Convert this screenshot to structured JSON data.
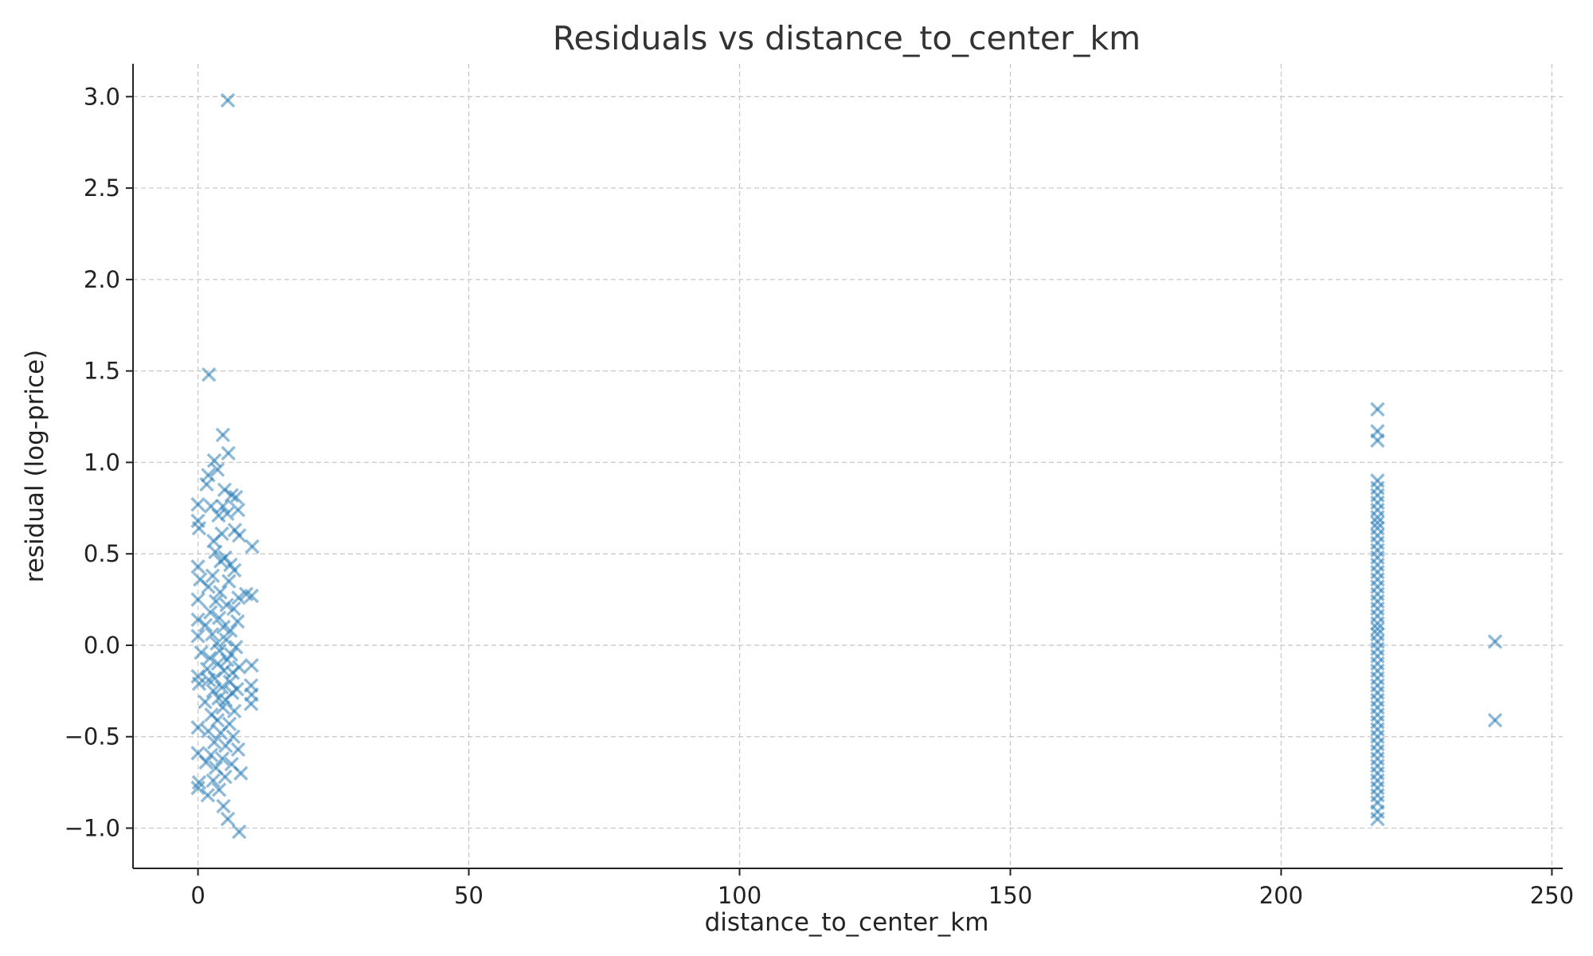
{
  "chart_data": {
    "type": "scatter",
    "title": "Residuals vs distance_to_center_km",
    "xlabel": "distance_to_center_km",
    "ylabel": "residual (log-price)",
    "xlim": [
      -12,
      252
    ],
    "ylim": [
      -1.22,
      3.18
    ],
    "xticks": [
      0,
      50,
      100,
      150,
      200,
      250
    ],
    "xtick_labels": [
      "0",
      "50",
      "100",
      "150",
      "200",
      "250"
    ],
    "yticks": [
      -1.0,
      -0.5,
      0.0,
      0.5,
      1.0,
      1.5,
      2.0,
      2.5,
      3.0
    ],
    "ytick_labels": [
      "−1.0",
      "−0.5",
      "0.0",
      "0.5",
      "1.0",
      "1.5",
      "2.0",
      "2.5",
      "3.0"
    ],
    "grid": true,
    "marker": "x",
    "color": "#1f77b4",
    "series": [
      {
        "points": [
          [
            5.5,
            2.98
          ],
          [
            2.0,
            1.48
          ],
          [
            4.6,
            1.15
          ],
          [
            5.6,
            1.05
          ],
          [
            3.0,
            1.01
          ],
          [
            3.6,
            0.96
          ],
          [
            1.9,
            0.93
          ],
          [
            1.6,
            0.88
          ],
          [
            4.9,
            0.85
          ],
          [
            6.2,
            0.82
          ],
          [
            7.0,
            0.81
          ],
          [
            0.0,
            0.77
          ],
          [
            2.4,
            0.76
          ],
          [
            4.6,
            0.76
          ],
          [
            7.4,
            0.74
          ],
          [
            3.8,
            0.71
          ],
          [
            5.4,
            0.72
          ],
          [
            0.0,
            0.68
          ],
          [
            0.2,
            0.64
          ],
          [
            6.8,
            0.63
          ],
          [
            4.4,
            0.61
          ],
          [
            2.9,
            0.57
          ],
          [
            7.6,
            0.6
          ],
          [
            10.0,
            0.54
          ],
          [
            3.2,
            0.51
          ],
          [
            5.0,
            0.48
          ],
          [
            6.0,
            0.44
          ],
          [
            4.2,
            0.46
          ],
          [
            0.0,
            0.43
          ],
          [
            6.7,
            0.41
          ],
          [
            2.7,
            0.38
          ],
          [
            0.4,
            0.36
          ],
          [
            5.7,
            0.35
          ],
          [
            1.9,
            0.32
          ],
          [
            4.1,
            0.29
          ],
          [
            8.9,
            0.28
          ],
          [
            9.9,
            0.27
          ],
          [
            7.5,
            0.26
          ],
          [
            3.3,
            0.24
          ],
          [
            0.0,
            0.25
          ],
          [
            5.3,
            0.22
          ],
          [
            6.6,
            0.2
          ],
          [
            2.3,
            0.18
          ],
          [
            3.9,
            0.15
          ],
          [
            0.0,
            0.14
          ],
          [
            7.3,
            0.13
          ],
          [
            1.4,
            0.11
          ],
          [
            4.7,
            0.1
          ],
          [
            6.0,
            0.08
          ],
          [
            2.6,
            0.06
          ],
          [
            0.0,
            0.05
          ],
          [
            5.2,
            0.03
          ],
          [
            3.5,
            0.01
          ],
          [
            7.0,
            -0.01
          ],
          [
            4.0,
            -0.03
          ],
          [
            0.6,
            -0.04
          ],
          [
            6.1,
            -0.05
          ],
          [
            2.2,
            -0.07
          ],
          [
            5.4,
            -0.08
          ],
          [
            3.7,
            -0.1
          ],
          [
            9.9,
            -0.11
          ],
          [
            7.6,
            -0.12
          ],
          [
            1.7,
            -0.13
          ],
          [
            4.8,
            -0.14
          ],
          [
            6.4,
            -0.15
          ],
          [
            0.0,
            -0.17
          ],
          [
            3.1,
            -0.18
          ],
          [
            2.0,
            -0.19
          ],
          [
            5.9,
            -0.2
          ],
          [
            0.2,
            -0.21
          ],
          [
            9.8,
            -0.22
          ],
          [
            4.4,
            -0.23
          ],
          [
            7.2,
            -0.24
          ],
          [
            2.8,
            -0.25
          ],
          [
            6.3,
            -0.26
          ],
          [
            9.9,
            -0.27
          ],
          [
            3.8,
            -0.29
          ],
          [
            5.1,
            -0.3
          ],
          [
            1.3,
            -0.31
          ],
          [
            9.8,
            -0.32
          ],
          [
            4.6,
            -0.34
          ],
          [
            6.7,
            -0.36
          ],
          [
            2.5,
            -0.38
          ],
          [
            3.6,
            -0.41
          ],
          [
            5.8,
            -0.43
          ],
          [
            0.0,
            -0.45
          ],
          [
            1.9,
            -0.47
          ],
          [
            4.2,
            -0.48
          ],
          [
            6.5,
            -0.5
          ],
          [
            3.0,
            -0.53
          ],
          [
            5.1,
            -0.55
          ],
          [
            7.4,
            -0.57
          ],
          [
            0.0,
            -0.59
          ],
          [
            2.4,
            -0.6
          ],
          [
            4.5,
            -0.62
          ],
          [
            1.5,
            -0.64
          ],
          [
            6.2,
            -0.65
          ],
          [
            3.3,
            -0.67
          ],
          [
            7.9,
            -0.7
          ],
          [
            5.0,
            -0.72
          ],
          [
            2.8,
            -0.74
          ],
          [
            0.2,
            -0.75
          ],
          [
            0.0,
            -0.78
          ],
          [
            3.9,
            -0.79
          ],
          [
            1.8,
            -0.82
          ],
          [
            4.7,
            -0.88
          ],
          [
            5.5,
            -0.95
          ],
          [
            7.6,
            -1.02
          ],
          [
            217.8,
            1.29
          ],
          [
            217.8,
            1.17
          ],
          [
            217.8,
            1.12
          ],
          [
            217.8,
            0.9
          ],
          [
            217.8,
            0.86
          ],
          [
            217.8,
            0.82
          ],
          [
            217.8,
            0.78
          ],
          [
            217.8,
            0.74
          ],
          [
            217.8,
            0.7
          ],
          [
            217.8,
            0.67
          ],
          [
            217.8,
            0.64
          ],
          [
            217.8,
            0.6
          ],
          [
            217.8,
            0.56
          ],
          [
            217.8,
            0.52
          ],
          [
            217.8,
            0.48
          ],
          [
            217.8,
            0.44
          ],
          [
            217.8,
            0.4
          ],
          [
            217.8,
            0.36
          ],
          [
            217.8,
            0.32
          ],
          [
            217.8,
            0.28
          ],
          [
            217.8,
            0.24
          ],
          [
            217.8,
            0.2
          ],
          [
            217.8,
            0.16
          ],
          [
            217.8,
            0.12
          ],
          [
            217.8,
            0.09
          ],
          [
            217.8,
            0.06
          ],
          [
            217.8,
            0.02
          ],
          [
            217.8,
            -0.02
          ],
          [
            217.8,
            -0.06
          ],
          [
            217.8,
            -0.1
          ],
          [
            217.8,
            -0.14
          ],
          [
            217.8,
            -0.18
          ],
          [
            217.8,
            -0.22
          ],
          [
            217.8,
            -0.26
          ],
          [
            217.8,
            -0.3
          ],
          [
            217.8,
            -0.34
          ],
          [
            217.8,
            -0.38
          ],
          [
            217.8,
            -0.42
          ],
          [
            217.8,
            -0.46
          ],
          [
            217.8,
            -0.5
          ],
          [
            217.8,
            -0.54
          ],
          [
            217.8,
            -0.58
          ],
          [
            217.8,
            -0.62
          ],
          [
            217.8,
            -0.66
          ],
          [
            217.8,
            -0.7
          ],
          [
            217.8,
            -0.74
          ],
          [
            217.8,
            -0.78
          ],
          [
            217.8,
            -0.82
          ],
          [
            217.8,
            -0.86
          ],
          [
            217.8,
            -0.91
          ],
          [
            217.8,
            -0.95
          ],
          [
            239.5,
            0.02
          ],
          [
            239.5,
            -0.41
          ]
        ]
      }
    ]
  }
}
